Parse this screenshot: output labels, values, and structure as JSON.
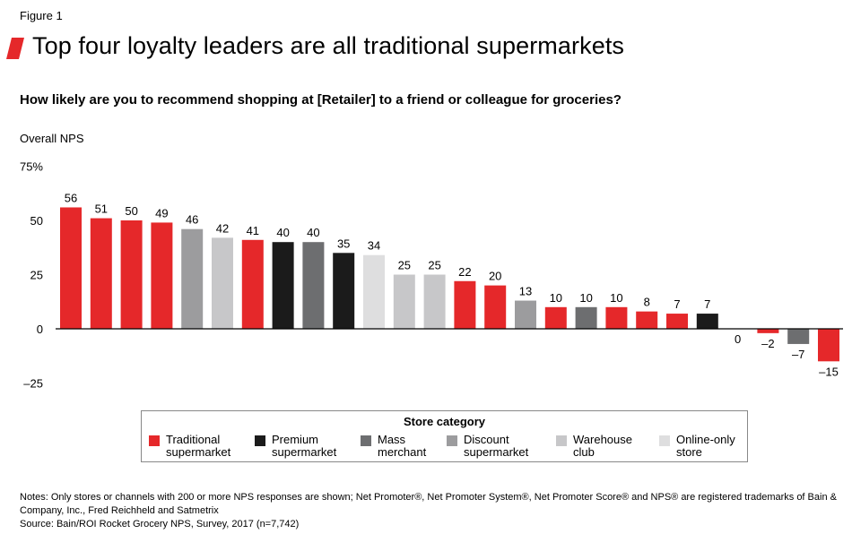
{
  "figure_label": "Figure 1",
  "title": "Top four loyalty leaders are all traditional supermarkets",
  "question": "How likely are you to recommend shopping at [Retailer] to a friend or colleague for groceries?",
  "colors": {
    "accent": "#e5282a",
    "Traditional supermarket": "#e5282a",
    "Premium supermarket": "#1b1b1b",
    "Mass merchant": "#6d6e70",
    "Discount supermarket": "#9c9c9e",
    "Warehouse club": "#c7c7c9",
    "Online-only store": "#dededf"
  },
  "chart_data": {
    "type": "bar",
    "ylabel": "Overall NPS",
    "ylim": [
      -25,
      75
    ],
    "yticks": [
      "75%",
      "50",
      "25",
      "0",
      "–25"
    ],
    "ytick_values": [
      75,
      50,
      25,
      0,
      -25
    ],
    "values": [
      56,
      51,
      50,
      49,
      46,
      42,
      41,
      40,
      40,
      35,
      34,
      25,
      25,
      22,
      20,
      13,
      10,
      10,
      10,
      8,
      7,
      7,
      0,
      -2,
      -7,
      -15
    ],
    "value_labels": [
      "56",
      "51",
      "50",
      "49",
      "46",
      "42",
      "41",
      "40",
      "40",
      "35",
      "34",
      "25",
      "25",
      "22",
      "20",
      "13",
      "10",
      "10",
      "10",
      "8",
      "7",
      "7",
      "0",
      "–2",
      "–7",
      "–15"
    ],
    "bar_categories": [
      "Traditional supermarket",
      "Traditional supermarket",
      "Traditional supermarket",
      "Traditional supermarket",
      "Discount supermarket",
      "Warehouse club",
      "Traditional supermarket",
      "Premium supermarket",
      "Mass merchant",
      "Premium supermarket",
      "Online-only store",
      "Warehouse club",
      "Warehouse club",
      "Traditional supermarket",
      "Traditional supermarket",
      "Discount supermarket",
      "Traditional supermarket",
      "Mass merchant",
      "Traditional supermarket",
      "Traditional supermarket",
      "Traditional supermarket",
      "Premium supermarket",
      "Traditional supermarket",
      "Traditional supermarket",
      "Mass merchant",
      "Traditional supermarket"
    ],
    "grid": false,
    "legend_position": "bottom"
  },
  "legend": {
    "title": "Store category",
    "items": [
      {
        "key": "Traditional supermarket",
        "label": "Traditional\nsupermarket"
      },
      {
        "key": "Premium supermarket",
        "label": "Premium\nsupermarket"
      },
      {
        "key": "Mass merchant",
        "label": "Mass\nmerchant"
      },
      {
        "key": "Discount supermarket",
        "label": "Discount\nsupermarket"
      },
      {
        "key": "Warehouse club",
        "label": "Warehouse\nclub"
      },
      {
        "key": "Online-only store",
        "label": "Online-only\nstore"
      }
    ]
  },
  "notes": [
    "Notes: Only stores or channels with 200 or more NPS responses are shown; Net Promoter®, Net Promoter System®, Net Promoter Score® and NPS® are registered trademarks of Bain & Company, Inc., Fred Reichheld and Satmetrix",
    "Source: Bain/ROI Rocket Grocery NPS, Survey, 2017 (n=7,742)"
  ]
}
